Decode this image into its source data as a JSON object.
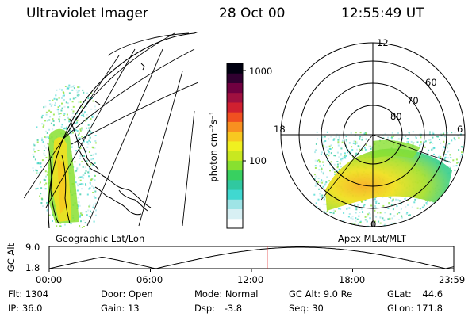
{
  "header": {
    "instrument": "Ultraviolet Imager",
    "date": "28 Oct 00",
    "time": "12:55:49 UT"
  },
  "colorbar": {
    "label": "photon cm⁻²s⁻¹",
    "ticks": [
      {
        "label": "1000",
        "value": 1000
      },
      {
        "label": "100",
        "value": 100
      }
    ],
    "colors": [
      "#ffffff",
      "#d8f0f4",
      "#9fe4e6",
      "#40d8d0",
      "#30c8a0",
      "#38d060",
      "#88e030",
      "#c8e820",
      "#f0f020",
      "#f8c820",
      "#f89020",
      "#f05020",
      "#d02030",
      "#a01040",
      "#700040",
      "#300030",
      "#000010"
    ]
  },
  "left_panel": {
    "label": "Geographic Lat/Lon"
  },
  "right_panel": {
    "label": "Apex MLat/MLT",
    "mlt_labels": {
      "top": "12",
      "left": "18",
      "right": "6",
      "bottom": "0"
    },
    "lat_labels": [
      "60",
      "70",
      "80"
    ]
  },
  "altitude_plot": {
    "ylabel": "GC Alt",
    "yticks": [
      "9.0",
      "1.8"
    ],
    "xticks": [
      "00:00",
      "06:00",
      "12:00",
      "18:00",
      "23:59"
    ],
    "current_marker_fraction": 0.5387
  },
  "info": {
    "flt": {
      "label": "Flt:",
      "value": "1304"
    },
    "ip": {
      "label": "IP:",
      "value": "36.0"
    },
    "door": {
      "label": "Door:",
      "value": "Open"
    },
    "gain": {
      "label": "Gain:",
      "value": "13"
    },
    "mode": {
      "label": "Mode:",
      "value": "Normal"
    },
    "dsp": {
      "label": "Dsp:",
      "value": "-3.8"
    },
    "gcalt": {
      "label": "GC Alt:",
      "value": "9.0 Re"
    },
    "seq": {
      "label": "Seq:",
      "value": "30"
    },
    "glat": {
      "label": "GLat:",
      "value": "44.6"
    },
    "glon": {
      "label": "GLon:",
      "value": "171.8"
    }
  }
}
